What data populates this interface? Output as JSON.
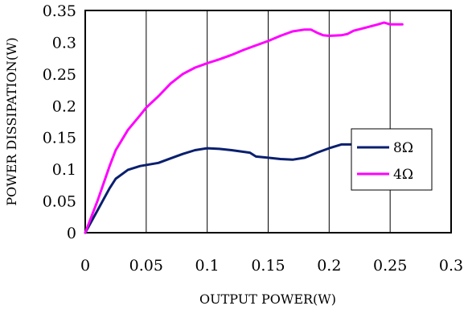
{
  "chart_data": {
    "type": "line",
    "title": "",
    "xlabel": "OUTPUT POWER(W)",
    "ylabel": "POWER DISSIPATION(W)",
    "xlim": [
      0,
      0.3
    ],
    "ylim": [
      0,
      0.35
    ],
    "x_ticks": [
      "0",
      "0.05",
      "0.1",
      "0.15",
      "0.2",
      "0.25",
      "0.3"
    ],
    "y_ticks": [
      "0",
      "0.05",
      "0.1",
      "0.15",
      "0.2",
      "0.25",
      "0.3",
      "0.35"
    ],
    "grid": "vertical",
    "legend_position": "right-middle",
    "series": [
      {
        "name": "8Ω",
        "color": "#0a1f6e",
        "points": [
          [
            0,
            0
          ],
          [
            0.01,
            0.035
          ],
          [
            0.02,
            0.07
          ],
          [
            0.025,
            0.085
          ],
          [
            0.035,
            0.099
          ],
          [
            0.045,
            0.105
          ],
          [
            0.06,
            0.11
          ],
          [
            0.07,
            0.117
          ],
          [
            0.08,
            0.124
          ],
          [
            0.09,
            0.13
          ],
          [
            0.1,
            0.133
          ],
          [
            0.11,
            0.132
          ],
          [
            0.12,
            0.13
          ],
          [
            0.135,
            0.126
          ],
          [
            0.14,
            0.12
          ],
          [
            0.15,
            0.118
          ],
          [
            0.16,
            0.116
          ],
          [
            0.17,
            0.115
          ],
          [
            0.18,
            0.118
          ],
          [
            0.19,
            0.126
          ],
          [
            0.2,
            0.133
          ],
          [
            0.21,
            0.139
          ],
          [
            0.22,
            0.139
          ]
        ]
      },
      {
        "name": "4Ω",
        "color": "#ff00ff",
        "points": [
          [
            0,
            0
          ],
          [
            0.01,
            0.05
          ],
          [
            0.02,
            0.105
          ],
          [
            0.025,
            0.13
          ],
          [
            0.035,
            0.162
          ],
          [
            0.045,
            0.185
          ],
          [
            0.05,
            0.197
          ],
          [
            0.06,
            0.215
          ],
          [
            0.07,
            0.235
          ],
          [
            0.08,
            0.25
          ],
          [
            0.09,
            0.26
          ],
          [
            0.1,
            0.267
          ],
          [
            0.11,
            0.273
          ],
          [
            0.12,
            0.28
          ],
          [
            0.13,
            0.288
          ],
          [
            0.14,
            0.295
          ],
          [
            0.15,
            0.302
          ],
          [
            0.16,
            0.31
          ],
          [
            0.17,
            0.317
          ],
          [
            0.18,
            0.32
          ],
          [
            0.185,
            0.32
          ],
          [
            0.19,
            0.315
          ],
          [
            0.195,
            0.311
          ],
          [
            0.2,
            0.31
          ],
          [
            0.21,
            0.311
          ],
          [
            0.215,
            0.313
          ],
          [
            0.22,
            0.318
          ],
          [
            0.23,
            0.323
          ],
          [
            0.24,
            0.328
          ],
          [
            0.245,
            0.331
          ],
          [
            0.25,
            0.328
          ],
          [
            0.26,
            0.328
          ]
        ]
      }
    ]
  }
}
